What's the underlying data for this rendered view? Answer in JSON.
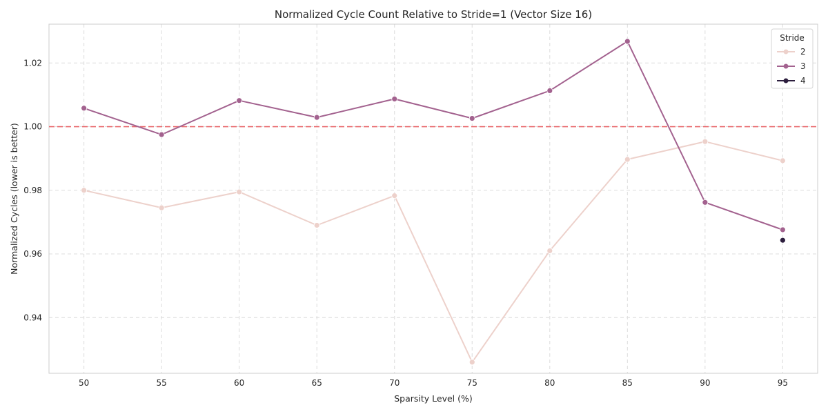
{
  "chart_data": {
    "type": "line",
    "title": "Normalized Cycle Count Relative to Stride=1 (Vector Size 16)",
    "xlabel": "Sparsity Level (%)",
    "ylabel": "Normalized Cycles (lower is better)",
    "x": [
      50,
      55,
      60,
      65,
      70,
      75,
      80,
      85,
      90,
      95
    ],
    "x_tick_labels": [
      "50",
      "55",
      "60",
      "65",
      "70",
      "75",
      "80",
      "85",
      "90",
      "95"
    ],
    "y_ticks": [
      0.94,
      0.96,
      0.98,
      1.0,
      1.02
    ],
    "y_tick_labels": [
      "0.94",
      "0.96",
      "0.98",
      "1.00",
      "1.02"
    ],
    "xlim": [
      47.75,
      97.25
    ],
    "ylim": [
      0.9225,
      1.0322
    ],
    "grid": true,
    "grid_style": "dashed",
    "legend": {
      "title": "Stride",
      "placement": "top-right"
    },
    "reference_line": {
      "y": 1.0,
      "color": "#e8676b",
      "style": "dashed"
    },
    "series": [
      {
        "name": "2",
        "color": "#edd1cb",
        "values": [
          0.98,
          0.9745,
          0.9795,
          0.969,
          0.9783,
          0.926,
          0.961,
          0.9897,
          0.9953,
          0.9893
        ]
      },
      {
        "name": "3",
        "color": "#a3628f",
        "values": [
          1.0058,
          0.9975,
          1.0082,
          1.0029,
          1.0087,
          1.0026,
          1.0113,
          1.0268,
          0.9762,
          0.9676
        ]
      },
      {
        "name": "4",
        "color": "#2d1e3e",
        "values": [
          null,
          null,
          null,
          null,
          null,
          null,
          null,
          null,
          null,
          0.9643
        ]
      }
    ]
  }
}
